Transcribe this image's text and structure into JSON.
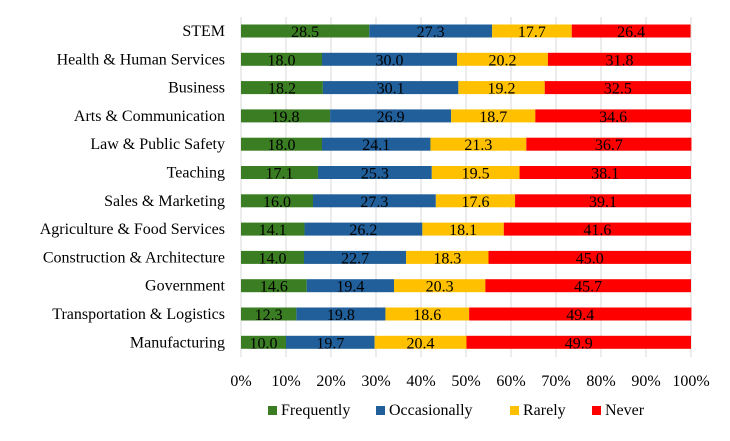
{
  "chart_data": {
    "type": "bar",
    "orientation": "horizontal",
    "stacked": "percent",
    "categories": [
      "STEM",
      "Health & Human Services",
      "Business",
      "Arts & Communication",
      "Law & Public Safety",
      "Teaching",
      "Sales & Marketing",
      "Agriculture & Food Services",
      "Construction & Architecture",
      "Government",
      "Transportation & Logistics",
      "Manufacturing"
    ],
    "series": [
      {
        "name": "Frequently",
        "color": "#3a7d22",
        "values": [
          28.5,
          18.0,
          18.2,
          19.8,
          18.0,
          17.1,
          16.0,
          14.1,
          14.0,
          14.6,
          12.3,
          10.0
        ]
      },
      {
        "name": "Occasionally",
        "color": "#215f9a",
        "values": [
          27.3,
          30.0,
          30.1,
          26.9,
          24.1,
          25.3,
          27.3,
          26.2,
          22.7,
          19.4,
          19.8,
          19.7
        ]
      },
      {
        "name": "Rarely",
        "color": "#ffc000",
        "values": [
          17.7,
          20.2,
          19.2,
          18.7,
          21.3,
          19.5,
          17.6,
          18.1,
          18.3,
          20.3,
          18.6,
          20.4
        ]
      },
      {
        "name": "Never",
        "color": "#ff0000",
        "values": [
          26.4,
          31.8,
          32.5,
          34.6,
          36.7,
          38.1,
          39.1,
          41.6,
          45.0,
          45.7,
          49.4,
          49.9
        ]
      }
    ],
    "value_labels": [
      "28.5",
      "27.3",
      "17.7",
      "26.4"
    ],
    "xticks": [
      "0%",
      "10%",
      "20%",
      "30%",
      "40%",
      "50%",
      "60%",
      "70%",
      "80%",
      "90%",
      "100%"
    ],
    "xlim": [
      0,
      100
    ],
    "grid": "vertical",
    "legend": "bottom",
    "title": "",
    "xlabel": "",
    "ylabel": ""
  }
}
